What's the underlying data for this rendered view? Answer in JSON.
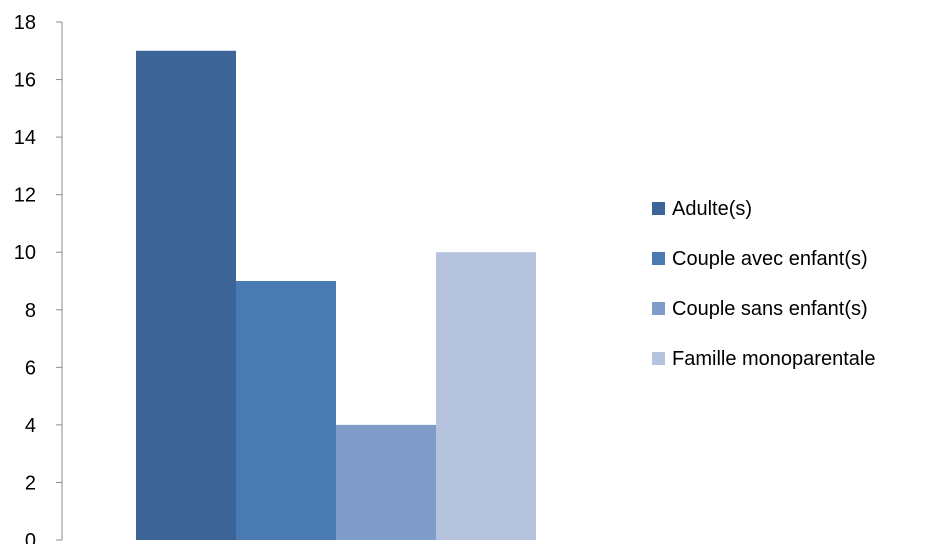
{
  "chart_data": {
    "type": "bar",
    "categories": [
      ""
    ],
    "series": [
      {
        "name": "Adulte(s)",
        "values": [
          17
        ],
        "color": "#3C6496"
      },
      {
        "name": "Couple avec enfant(s)",
        "values": [
          9
        ],
        "color": "#4A7AB2"
      },
      {
        "name": "Couple sans enfant(s)",
        "values": [
          4
        ],
        "color": "#7F9DC8"
      },
      {
        "name": "Famille monoparentale",
        "values": [
          10
        ],
        "color": "#B5C3DF"
      }
    ],
    "title": "",
    "xlabel": "",
    "ylabel": "",
    "ylim": [
      0,
      18
    ],
    "yticks": [
      0,
      2,
      4,
      6,
      8,
      10,
      12,
      14,
      16,
      18
    ],
    "grid": false,
    "legend_position": "right"
  }
}
